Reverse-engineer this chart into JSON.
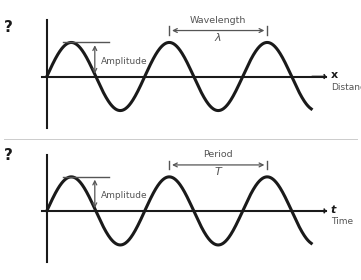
{
  "bg_color": "#ffffff",
  "wave_color": "#1a1a1a",
  "axis_color": "#1a1a1a",
  "annotation_color": "#555555",
  "amplitude": 1.0,
  "top_label_wavelength": "Wavelength",
  "top_label_lambda": "λ",
  "top_label_amplitude": "Amplitude",
  "top_axis_x_label": "x",
  "top_axis_dist_label": "Distance",
  "bot_label_period": "Period",
  "bot_label_T": "T",
  "bot_label_amplitude": "Amplitude",
  "bot_axis_t_label": "t",
  "bot_axis_time_label": "Time",
  "question_mark": "?"
}
